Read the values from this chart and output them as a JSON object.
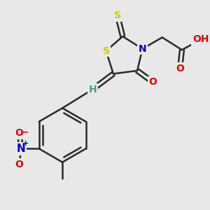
{
  "background_color": "#e8e8e8",
  "bond_color": "#2a2a2a",
  "atom_colors": {
    "S": "#cccc00",
    "N": "#0000cc",
    "O": "#ee0000",
    "H": "#4a9a8a",
    "C": "#2a2a2a"
  },
  "lw": 1.8,
  "fontsize": 10
}
